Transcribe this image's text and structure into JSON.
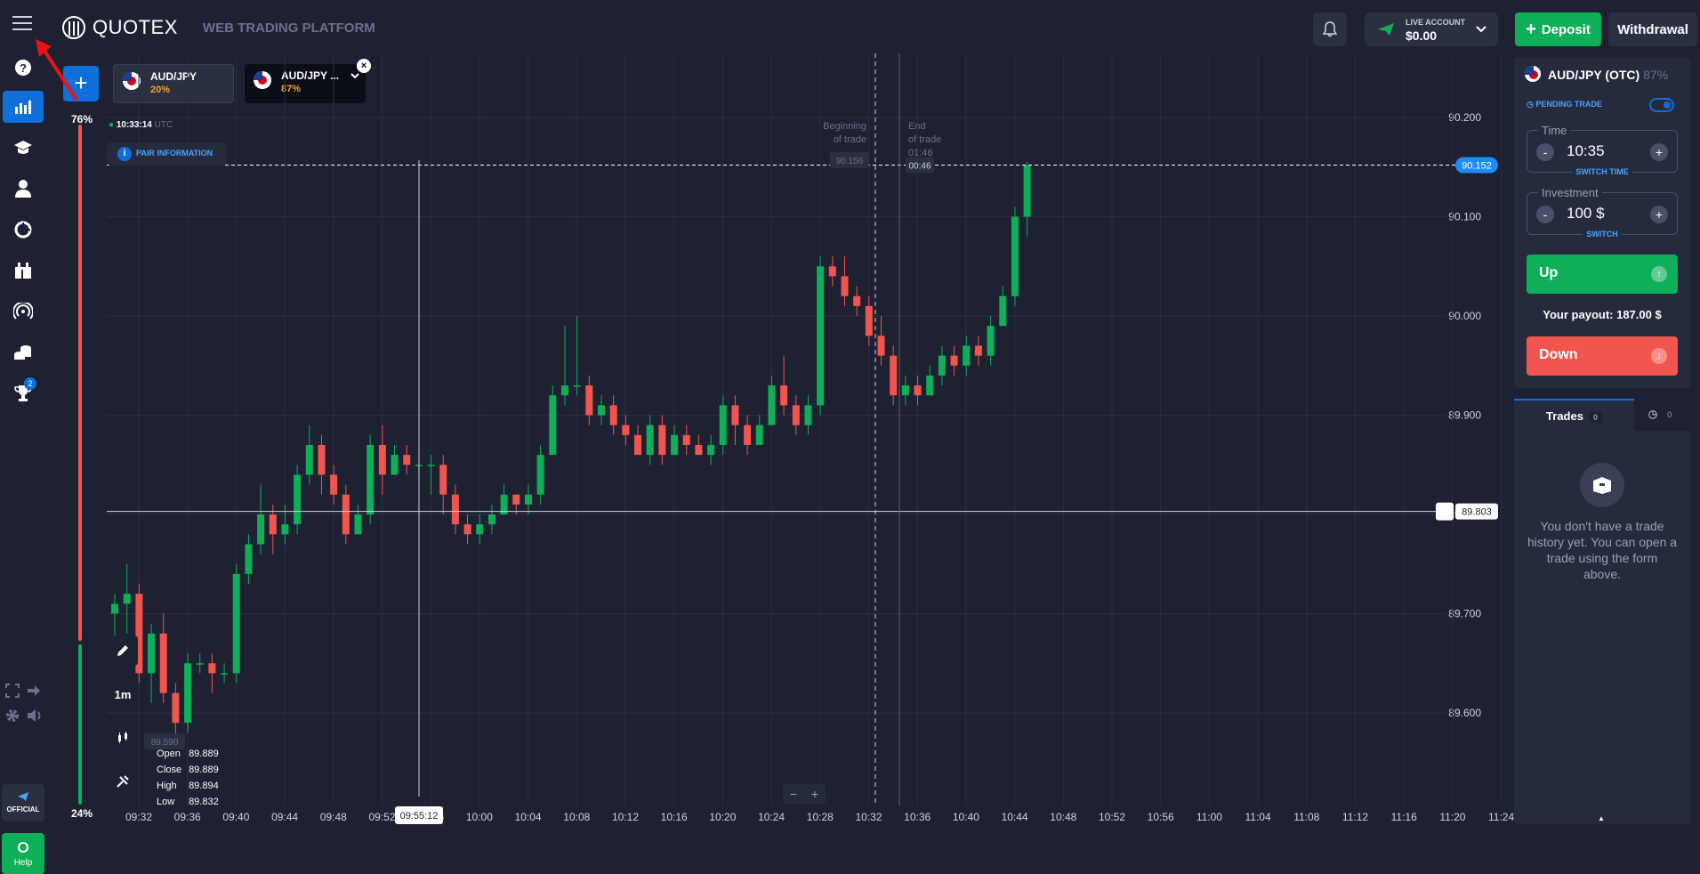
{
  "header": {
    "logo": "QUOTEX",
    "subtitle": "WEB TRADING PLATFORM",
    "account_label": "LIVE ACCOUNT",
    "account_balance": "$0.00",
    "deposit_label": "Deposit",
    "withdraw_label": "Withdrawal"
  },
  "sidebar": {
    "badge_count": "2",
    "official_label": "OFFICIAL",
    "help_label": "Help"
  },
  "sentiment": {
    "top": "76%",
    "bottom": "24%"
  },
  "tabs": [
    {
      "name": "AUD/JPY",
      "payout": "20%"
    },
    {
      "name": "AUD/JPY ...",
      "payout": "87%"
    }
  ],
  "chart": {
    "time": "10:33:14",
    "tz": "UTC",
    "pair_info": "PAIR INFORMATION",
    "timeframe": "1m",
    "beginning_label": [
      "Beginning",
      "of trade"
    ],
    "end_label": [
      "End",
      "of trade",
      "01:46"
    ],
    "open_price_marker": "90.156",
    "timer_marker": "00:46",
    "current_price": "90.152",
    "alert_price": "89.803",
    "low_marker": "89.590",
    "crosshair_time": "09:55:12",
    "ohlc": {
      "Open": "89.889",
      "Close": "89.889",
      "High": "89.894",
      "Low": "89.832"
    }
  },
  "chart_data": {
    "type": "candlestick",
    "y_ticks": [
      "90.200",
      "90.100",
      "90.000",
      "89.900",
      "89.800",
      "89.700",
      "89.600"
    ],
    "x_ticks": [
      "09:32",
      "09:36",
      "09:40",
      "09:44",
      "09:48",
      "09:52",
      "09:56",
      "10:00",
      "10:04",
      "10:08",
      "10:12",
      "10:16",
      "10:20",
      "10:24",
      "10:28",
      "10:32",
      "10:36",
      "10:40",
      "10:44",
      "10:48",
      "10:52",
      "10:56",
      "11:00",
      "11:04",
      "11:08",
      "11:12",
      "11:16",
      "11:20",
      "11:24"
    ],
    "ylim": [
      89.55,
      90.22
    ],
    "candles": [
      [
        89.7,
        89.71,
        89.66,
        89.72
      ],
      [
        89.71,
        89.72,
        89.68,
        89.75
      ],
      [
        89.72,
        89.64,
        89.63,
        89.73
      ],
      [
        89.64,
        89.68,
        89.61,
        89.69
      ],
      [
        89.68,
        89.62,
        89.61,
        89.7
      ],
      [
        89.62,
        89.59,
        89.57,
        89.63
      ],
      [
        89.59,
        89.65,
        89.58,
        89.66
      ],
      [
        89.65,
        89.65,
        89.64,
        89.66
      ],
      [
        89.65,
        89.64,
        89.62,
        89.66
      ],
      [
        89.64,
        89.64,
        89.63,
        89.65
      ],
      [
        89.64,
        89.74,
        89.63,
        89.75
      ],
      [
        89.74,
        89.77,
        89.73,
        89.78
      ],
      [
        89.77,
        89.8,
        89.76,
        89.83
      ],
      [
        89.8,
        89.78,
        89.76,
        89.81
      ],
      [
        89.78,
        89.79,
        89.77,
        89.81
      ],
      [
        89.79,
        89.84,
        89.78,
        89.85
      ],
      [
        89.84,
        89.87,
        89.83,
        89.89
      ],
      [
        89.87,
        89.84,
        89.82,
        89.88
      ],
      [
        89.84,
        89.82,
        89.81,
        89.85
      ],
      [
        89.82,
        89.78,
        89.77,
        89.83
      ],
      [
        89.78,
        89.8,
        89.78,
        89.81
      ],
      [
        89.8,
        89.87,
        89.79,
        89.88
      ],
      [
        89.87,
        89.84,
        89.82,
        89.89
      ],
      [
        89.84,
        89.86,
        89.84,
        89.87
      ],
      [
        89.86,
        89.85,
        89.84,
        89.87
      ],
      [
        89.85,
        89.85,
        89.84,
        89.86
      ],
      [
        89.85,
        89.85,
        89.82,
        89.86
      ],
      [
        89.85,
        89.82,
        89.8,
        89.86
      ],
      [
        89.82,
        89.79,
        89.78,
        89.83
      ],
      [
        89.79,
        89.78,
        89.77,
        89.8
      ],
      [
        89.78,
        89.79,
        89.77,
        89.8
      ],
      [
        89.79,
        89.8,
        89.78,
        89.81
      ],
      [
        89.8,
        89.82,
        89.8,
        89.83
      ],
      [
        89.82,
        89.81,
        89.8,
        89.82
      ],
      [
        89.81,
        89.82,
        89.8,
        89.83
      ],
      [
        89.82,
        89.86,
        89.81,
        89.87
      ],
      [
        89.86,
        89.92,
        89.86,
        89.93
      ],
      [
        89.92,
        89.93,
        89.91,
        89.99
      ],
      [
        89.93,
        89.93,
        89.92,
        90.0
      ],
      [
        89.93,
        89.9,
        89.89,
        89.94
      ],
      [
        89.9,
        89.91,
        89.89,
        89.92
      ],
      [
        89.91,
        89.89,
        89.88,
        89.92
      ],
      [
        89.89,
        89.88,
        89.87,
        89.9
      ],
      [
        89.88,
        89.86,
        89.86,
        89.89
      ],
      [
        89.86,
        89.89,
        89.85,
        89.9
      ],
      [
        89.89,
        89.86,
        89.85,
        89.9
      ],
      [
        89.86,
        89.88,
        89.86,
        89.89
      ],
      [
        89.88,
        89.87,
        89.86,
        89.89
      ],
      [
        89.87,
        89.86,
        89.86,
        89.88
      ],
      [
        89.86,
        89.87,
        89.85,
        89.88
      ],
      [
        89.87,
        89.91,
        89.86,
        89.92
      ],
      [
        89.91,
        89.89,
        89.87,
        89.92
      ],
      [
        89.89,
        89.87,
        89.86,
        89.9
      ],
      [
        89.87,
        89.89,
        89.87,
        89.9
      ],
      [
        89.89,
        89.93,
        89.89,
        89.94
      ],
      [
        89.93,
        89.91,
        89.9,
        89.96
      ],
      [
        89.91,
        89.89,
        89.88,
        89.92
      ],
      [
        89.89,
        89.91,
        89.88,
        89.92
      ],
      [
        89.91,
        90.05,
        89.9,
        90.06
      ],
      [
        90.05,
        90.04,
        90.03,
        90.06
      ],
      [
        90.04,
        90.02,
        90.01,
        90.06
      ],
      [
        90.02,
        90.01,
        90.0,
        90.03
      ],
      [
        90.01,
        89.98,
        89.97,
        90.02
      ],
      [
        89.98,
        89.96,
        89.95,
        90.0
      ],
      [
        89.96,
        89.92,
        89.91,
        89.97
      ],
      [
        89.92,
        89.93,
        89.91,
        89.94
      ],
      [
        89.93,
        89.92,
        89.91,
        89.94
      ],
      [
        89.92,
        89.94,
        89.92,
        89.95
      ],
      [
        89.94,
        89.96,
        89.93,
        89.97
      ],
      [
        89.96,
        89.95,
        89.94,
        89.97
      ],
      [
        89.95,
        89.97,
        89.94,
        89.98
      ],
      [
        89.97,
        89.96,
        89.95,
        89.98
      ],
      [
        89.96,
        89.99,
        89.95,
        90.0
      ],
      [
        89.99,
        90.02,
        89.99,
        90.03
      ],
      [
        90.02,
        90.1,
        90.01,
        90.11
      ],
      [
        90.1,
        90.152,
        90.08,
        90.155
      ]
    ]
  },
  "panel": {
    "asset": "AUD/JPY (OTC)",
    "asset_payout": "87%",
    "pending": "PENDING TRADE",
    "time_label": "Time",
    "time_value": "10:35",
    "switch_time": "SWITCH TIME",
    "invest_label": "Investment",
    "invest_value": "100 $",
    "switch": "SWITCH",
    "up": "Up",
    "payout": "Your payout: 187.00 $",
    "down": "Down"
  },
  "trades": {
    "tab_label": "Trades",
    "count": "0",
    "history_count": "0",
    "empty_text": "You don't have a trade history yet. You can open a trade using the form above."
  },
  "colors": {
    "bg": "#1e2131",
    "up": "#0faf59",
    "down": "#f2554e",
    "accent": "#0f6fdb"
  }
}
